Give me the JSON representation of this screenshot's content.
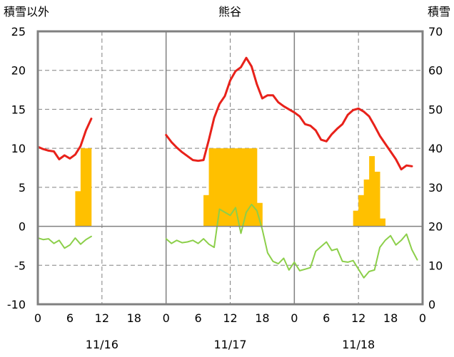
{
  "chart_data": {
    "type": "combo",
    "title": "熊谷",
    "left_axis": {
      "label": "積雪以外",
      "range": [
        -10,
        25
      ],
      "ticks": [
        -10,
        -5,
        0,
        5,
        10,
        15,
        20,
        25
      ]
    },
    "right_axis": {
      "label": "積雪",
      "range": [
        0,
        70
      ],
      "ticks": [
        0,
        10,
        20,
        30,
        40,
        50,
        60,
        70
      ]
    },
    "x_axis": {
      "unit": "hour",
      "range": [
        0,
        72
      ],
      "tick_labels": [
        "0",
        "6",
        "12",
        "18",
        "0",
        "6",
        "12",
        "18",
        "0",
        "6",
        "12",
        "18",
        "0"
      ],
      "date_labels": [
        "11/16",
        "11/17",
        "11/18"
      ]
    },
    "grid": true,
    "colors": {
      "red_line": "#e8211a",
      "green_line": "#8ccf4a",
      "bars": "#ffc000",
      "axis": "#808080",
      "grid": "#808080"
    },
    "series": [
      {
        "axis": "left",
        "style": "line",
        "color": "#e8211a",
        "segments": [
          [
            [
              0,
              10.2
            ],
            [
              1,
              9.9
            ],
            [
              2,
              9.7
            ],
            [
              3,
              9.6
            ],
            [
              4,
              8.6
            ],
            [
              5,
              9.1
            ],
            [
              6,
              8.7
            ],
            [
              7,
              9.2
            ],
            [
              8,
              10.3
            ],
            [
              9,
              12.3
            ],
            [
              10,
              13.8
            ]
          ],
          [
            [
              24,
              11.7
            ],
            [
              25,
              10.8
            ],
            [
              26,
              10.1
            ],
            [
              27,
              9.5
            ],
            [
              28,
              9.0
            ],
            [
              29,
              8.5
            ],
            [
              30,
              8.4
            ],
            [
              31,
              8.5
            ],
            [
              32,
              11.1
            ],
            [
              33,
              13.9
            ],
            [
              34,
              15.7
            ],
            [
              35,
              16.7
            ],
            [
              36,
              18.7
            ],
            [
              37,
              19.9
            ],
            [
              38,
              20.4
            ],
            [
              39,
              21.6
            ],
            [
              40,
              20.5
            ],
            [
              41,
              18.2
            ],
            [
              42,
              16.4
            ],
            [
              43,
              16.8
            ],
            [
              44,
              16.8
            ],
            [
              45,
              15.9
            ],
            [
              46,
              15.4
            ],
            [
              47,
              15.0
            ],
            [
              48,
              14.6
            ],
            [
              49,
              14.1
            ],
            [
              50,
              13.1
            ],
            [
              51,
              12.9
            ],
            [
              52,
              12.3
            ],
            [
              53,
              11.1
            ],
            [
              54,
              10.9
            ],
            [
              55,
              11.8
            ],
            [
              56,
              12.5
            ],
            [
              57,
              13.1
            ],
            [
              58,
              14.3
            ],
            [
              59,
              14.9
            ],
            [
              60,
              15.1
            ],
            [
              61,
              14.7
            ],
            [
              62,
              14.1
            ],
            [
              63,
              12.9
            ],
            [
              64,
              11.6
            ],
            [
              65,
              10.6
            ],
            [
              66,
              9.6
            ],
            [
              67,
              8.6
            ],
            [
              68,
              7.3
            ],
            [
              69,
              7.8
            ],
            [
              70,
              7.7
            ]
          ]
        ]
      },
      {
        "axis": "left",
        "style": "line",
        "color": "#8ccf4a",
        "segments": [
          [
            [
              0,
              -1.5
            ],
            [
              1,
              -1.7
            ],
            [
              2,
              -1.6
            ],
            [
              3,
              -2.2
            ],
            [
              4,
              -1.8
            ],
            [
              5,
              -2.8
            ],
            [
              6,
              -2.4
            ],
            [
              7,
              -1.5
            ],
            [
              8,
              -2.3
            ],
            [
              9,
              -1.7
            ],
            [
              10,
              -1.3
            ]
          ],
          [
            [
              24,
              -1.6
            ],
            [
              25,
              -2.2
            ],
            [
              26,
              -1.8
            ],
            [
              27,
              -2.1
            ],
            [
              28,
              -2.0
            ],
            [
              29,
              -1.8
            ],
            [
              30,
              -2.2
            ],
            [
              31,
              -1.6
            ],
            [
              32,
              -2.3
            ],
            [
              33,
              -2.7
            ],
            [
              34,
              2.2
            ],
            [
              35,
              1.8
            ],
            [
              36,
              1.4
            ],
            [
              37,
              2.4
            ],
            [
              38,
              -0.9
            ],
            [
              39,
              1.8
            ],
            [
              40,
              2.8
            ],
            [
              41,
              2.0
            ],
            [
              42,
              -0.4
            ],
            [
              43,
              -3.4
            ],
            [
              44,
              -4.5
            ],
            [
              45,
              -4.8
            ],
            [
              46,
              -4.1
            ],
            [
              47,
              -5.6
            ],
            [
              48,
              -4.6
            ],
            [
              49,
              -5.7
            ],
            [
              50,
              -5.5
            ],
            [
              51,
              -5.3
            ],
            [
              52,
              -3.2
            ],
            [
              53,
              -2.6
            ],
            [
              54,
              -2.0
            ],
            [
              55,
              -3.1
            ],
            [
              56,
              -2.9
            ],
            [
              57,
              -4.5
            ],
            [
              58,
              -4.6
            ],
            [
              59,
              -4.4
            ],
            [
              60,
              -5.5
            ],
            [
              61,
              -6.6
            ],
            [
              62,
              -5.8
            ],
            [
              63,
              -5.6
            ],
            [
              64,
              -2.7
            ],
            [
              65,
              -1.8
            ],
            [
              66,
              -1.2
            ],
            [
              67,
              -2.4
            ],
            [
              68,
              -1.8
            ],
            [
              69,
              -1.0
            ],
            [
              70,
              -3.0
            ],
            [
              71,
              -4.3
            ]
          ]
        ]
      },
      {
        "axis": "right",
        "style": "bar",
        "color": "#ffc000",
        "bars": [
          [
            7,
            29
          ],
          [
            8,
            40
          ],
          [
            9,
            40
          ],
          [
            31,
            28
          ],
          [
            32,
            40
          ],
          [
            33,
            40
          ],
          [
            34,
            40
          ],
          [
            35,
            40
          ],
          [
            36,
            40
          ],
          [
            37,
            40
          ],
          [
            38,
            40
          ],
          [
            39,
            40
          ],
          [
            40,
            40
          ],
          [
            41,
            26
          ],
          [
            59,
            24
          ],
          [
            60,
            28
          ],
          [
            61,
            32
          ],
          [
            62,
            38
          ],
          [
            63,
            34
          ],
          [
            64,
            22
          ]
        ]
      }
    ]
  }
}
